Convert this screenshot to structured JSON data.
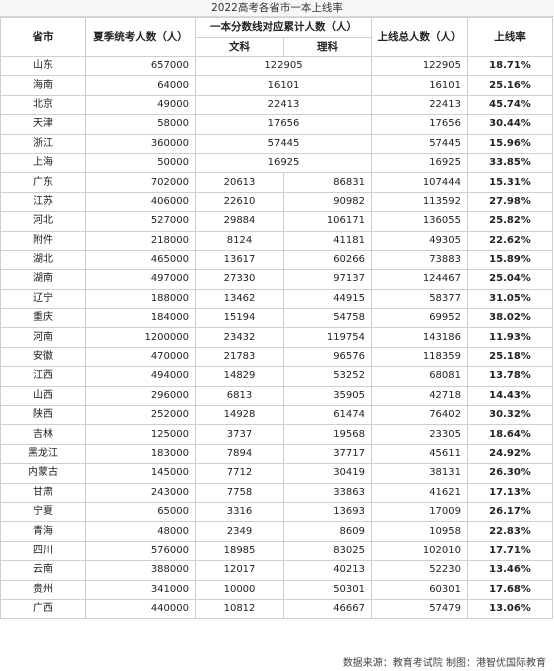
{
  "title": "2022高考各省市一本上线率",
  "headers": {
    "province": "省市",
    "applicants": "夏季统考人数（人）",
    "cumulative": "一本分数线对应累计人数（人）",
    "arts": "文科",
    "science": "理科",
    "total": "上线总人数（人）",
    "rate": "上线率"
  },
  "merged_rows": [
    {
      "province": "山东",
      "applicants": "657000",
      "cumulative": "122905",
      "total": "122905",
      "rate": "18.71%"
    },
    {
      "province": "海南",
      "applicants": "64000",
      "cumulative": "16101",
      "total": "16101",
      "rate": "25.16%"
    },
    {
      "province": "北京",
      "applicants": "49000",
      "cumulative": "22413",
      "total": "22413",
      "rate": "45.74%"
    },
    {
      "province": "天津",
      "applicants": "58000",
      "cumulative": "17656",
      "total": "17656",
      "rate": "30.44%"
    },
    {
      "province": "浙江",
      "applicants": "360000",
      "cumulative": "57445",
      "total": "57445",
      "rate": "15.96%"
    },
    {
      "province": "上海",
      "applicants": "50000",
      "cumulative": "16925",
      "total": "16925",
      "rate": "33.85%"
    }
  ],
  "split_rows": [
    {
      "province": "广东",
      "applicants": "702000",
      "arts": "20613",
      "science": "86831",
      "total": "107444",
      "rate": "15.31%"
    },
    {
      "province": "江苏",
      "applicants": "406000",
      "arts": "22610",
      "science": "90982",
      "total": "113592",
      "rate": "27.98%"
    },
    {
      "province": "河北",
      "applicants": "527000",
      "arts": "29884",
      "science": "106171",
      "total": "136055",
      "rate": "25.82%"
    },
    {
      "province": "附件",
      "applicants": "218000",
      "arts": "8124",
      "science": "41181",
      "total": "49305",
      "rate": "22.62%"
    },
    {
      "province": "湖北",
      "applicants": "465000",
      "arts": "13617",
      "science": "60266",
      "total": "73883",
      "rate": "15.89%"
    },
    {
      "province": "湖南",
      "applicants": "497000",
      "arts": "27330",
      "science": "97137",
      "total": "124467",
      "rate": "25.04%"
    },
    {
      "province": "辽宁",
      "applicants": "188000",
      "arts": "13462",
      "science": "44915",
      "total": "58377",
      "rate": "31.05%"
    },
    {
      "province": "重庆",
      "applicants": "184000",
      "arts": "15194",
      "science": "54758",
      "total": "69952",
      "rate": "38.02%"
    },
    {
      "province": "河南",
      "applicants": "1200000",
      "arts": "23432",
      "science": "119754",
      "total": "143186",
      "rate": "11.93%"
    },
    {
      "province": "安徽",
      "applicants": "470000",
      "arts": "21783",
      "science": "96576",
      "total": "118359",
      "rate": "25.18%"
    },
    {
      "province": "江西",
      "applicants": "494000",
      "arts": "14829",
      "science": "53252",
      "total": "68081",
      "rate": "13.78%"
    },
    {
      "province": "山西",
      "applicants": "296000",
      "arts": "6813",
      "science": "35905",
      "total": "42718",
      "rate": "14.43%"
    },
    {
      "province": "陕西",
      "applicants": "252000",
      "arts": "14928",
      "science": "61474",
      "total": "76402",
      "rate": "30.32%"
    },
    {
      "province": "吉林",
      "applicants": "125000",
      "arts": "3737",
      "science": "19568",
      "total": "23305",
      "rate": "18.64%"
    },
    {
      "province": "黑龙江",
      "applicants": "183000",
      "arts": "7894",
      "science": "37717",
      "total": "45611",
      "rate": "24.92%"
    },
    {
      "province": "内蒙古",
      "applicants": "145000",
      "arts": "7712",
      "science": "30419",
      "total": "38131",
      "rate": "26.30%"
    },
    {
      "province": "甘肃",
      "applicants": "243000",
      "arts": "7758",
      "science": "33863",
      "total": "41621",
      "rate": "17.13%"
    },
    {
      "province": "宁夏",
      "applicants": "65000",
      "arts": "3316",
      "science": "13693",
      "total": "17009",
      "rate": "26.17%"
    },
    {
      "province": "青海",
      "applicants": "48000",
      "arts": "2349",
      "science": "8609",
      "total": "10958",
      "rate": "22.83%"
    },
    {
      "province": "四川",
      "applicants": "576000",
      "arts": "18985",
      "science": "83025",
      "total": "102010",
      "rate": "17.71%"
    },
    {
      "province": "云南",
      "applicants": "388000",
      "arts": "12017",
      "science": "40213",
      "total": "52230",
      "rate": "13.46%"
    },
    {
      "province": "贵州",
      "applicants": "341000",
      "arts": "10000",
      "science": "50301",
      "total": "60301",
      "rate": "17.68%"
    },
    {
      "province": "广西",
      "applicants": "440000",
      "arts": "10812",
      "science": "46667",
      "total": "57479",
      "rate": "13.06%"
    }
  ],
  "footer": "数据来源：教育考试院 制图：港智优国际教育"
}
